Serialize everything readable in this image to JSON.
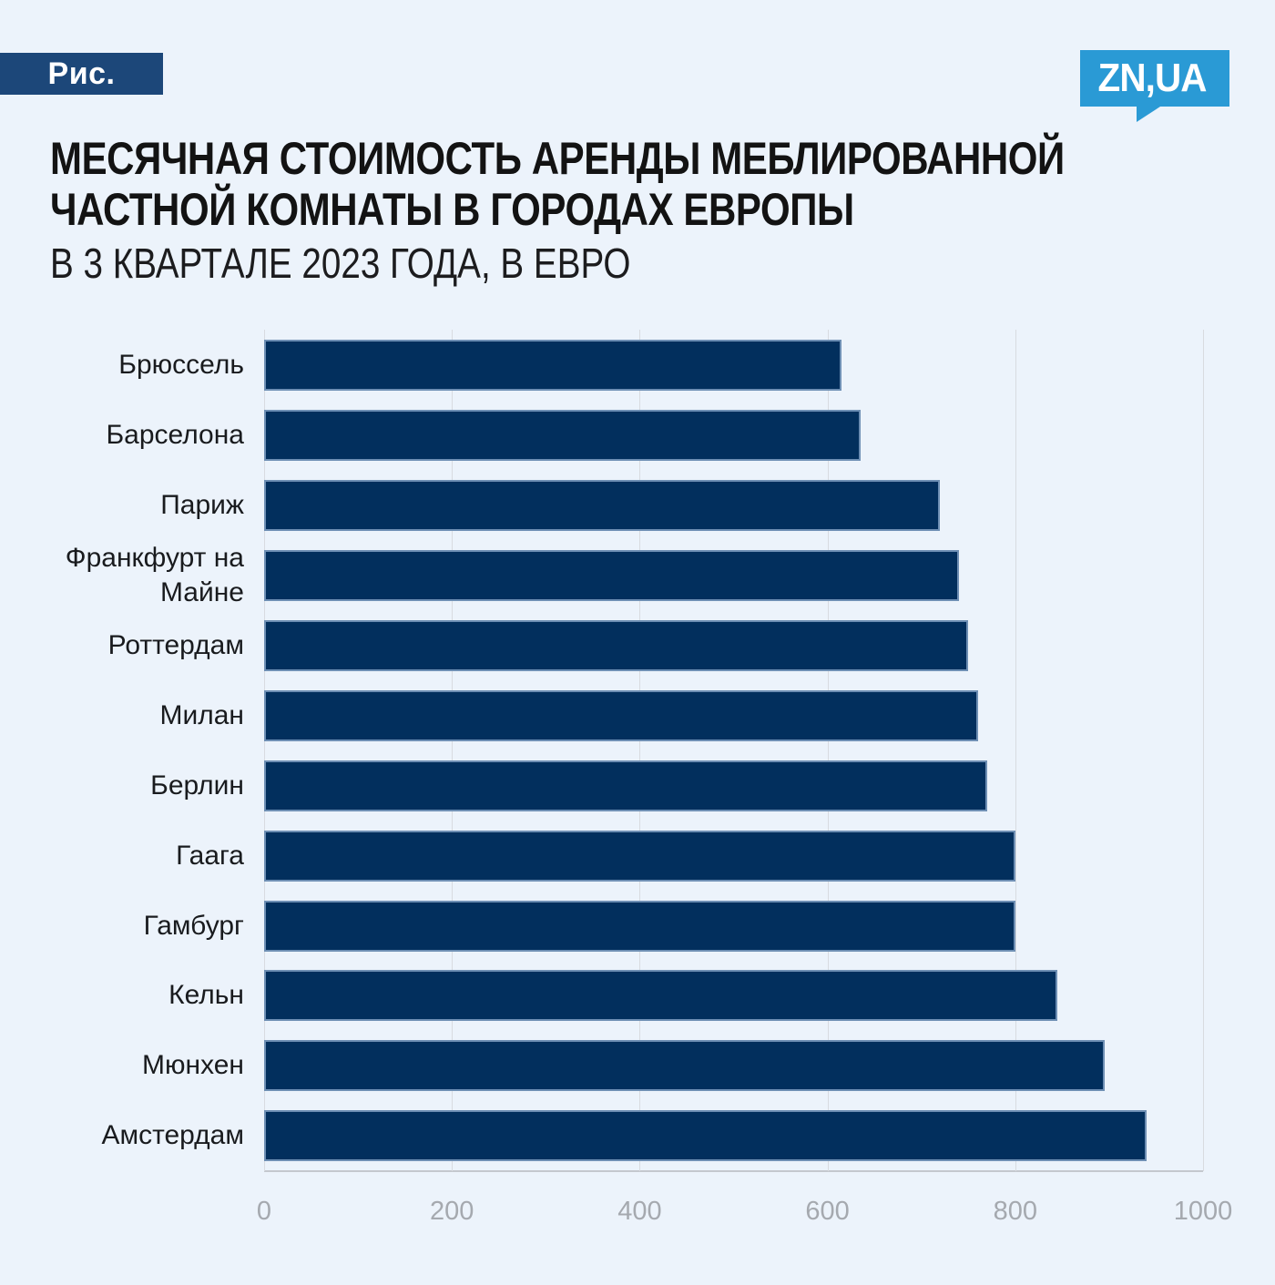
{
  "badge": {
    "label": "Рис."
  },
  "logo": {
    "text": "ZN,UA"
  },
  "header": {
    "title_line1": "МЕСЯЧНАЯ СТОИМОСТЬ АРЕНДЫ МЕБЛИРОВАННОЙ",
    "title_line2": "ЧАСТНОЙ КОМНАТЫ В ГОРОДАХ ЕВРОПЫ",
    "subtitle": "В 3 КВАРТАЛЕ 2023 ГОДА, В ЕВРО"
  },
  "chart_data": {
    "type": "bar",
    "orientation": "horizontal",
    "title": "МЕСЯЧНАЯ СТОИМОСТЬ АРЕНДЫ МЕБЛИРОВАННОЙ ЧАСТНОЙ КОМНАТЫ В ГОРОДАХ ЕВРОПЫ",
    "subtitle": "В 3 КВАРТАЛЕ 2023 ГОДА, В ЕВРО",
    "unit": "евро",
    "categories": [
      "Брюссель",
      "Барселона",
      "Париж",
      "Франкфурт на Майне",
      "Роттердам",
      "Милан",
      "Берлин",
      "Гаага",
      "Гамбург",
      "Кельн",
      "Мюнхен",
      "Амстердам"
    ],
    "values": [
      615,
      635,
      720,
      740,
      750,
      760,
      770,
      800,
      800,
      845,
      895,
      940
    ],
    "xlim": [
      0,
      1000
    ],
    "x_ticks": [
      0,
      200,
      400,
      600,
      800,
      1000
    ],
    "grid": true,
    "legend": false
  },
  "colors": {
    "background": "#ecf3fb",
    "bar": "#022f5d",
    "bar_border": "#6e8fb4",
    "badge_bg": "#1c4779",
    "logo_bg": "#2a9ad5",
    "title_text": "#131313",
    "label_text": "#191b1e",
    "tick_text": "#a5a9af",
    "gridline": "#d8dbe0",
    "axis_line": "#c4c8ce"
  }
}
